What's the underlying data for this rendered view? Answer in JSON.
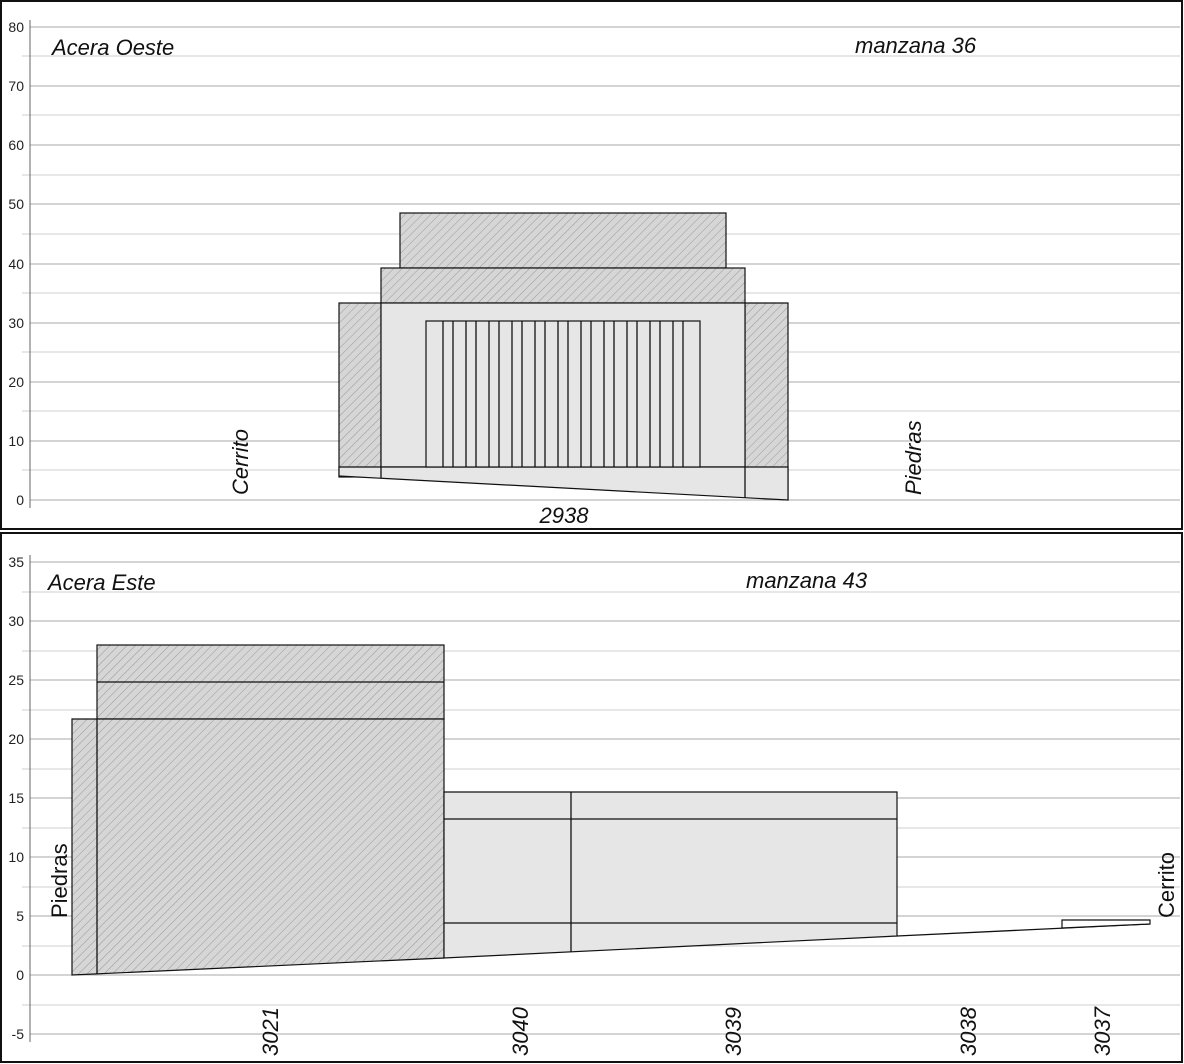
{
  "colors": {
    "hatch_fill": "#d6d6d6",
    "plain_fill": "#e6e6e6",
    "outline": "#111111",
    "grid": "#a8a8a8",
    "background": "#ffffff"
  },
  "panel_oeste": {
    "y_ticks": [
      "80",
      "70",
      "60",
      "50",
      "40",
      "30",
      "20",
      "10",
      "0"
    ],
    "title_left": "Acera Oeste",
    "title_right": "manzana 36",
    "street_left": "Cerrito",
    "street_right": "Piedras",
    "lot_label": "2938"
  },
  "panel_este": {
    "y_ticks": [
      "35",
      "30",
      "25",
      "20",
      "15",
      "10",
      "5",
      "0",
      "-5"
    ],
    "title_left": "Acera Este",
    "title_right": "manzana 43",
    "street_left": "Piedras",
    "street_right": "Cerrito",
    "lot_labels": [
      "3021",
      "3040",
      "3039",
      "3038",
      "3037"
    ]
  }
}
